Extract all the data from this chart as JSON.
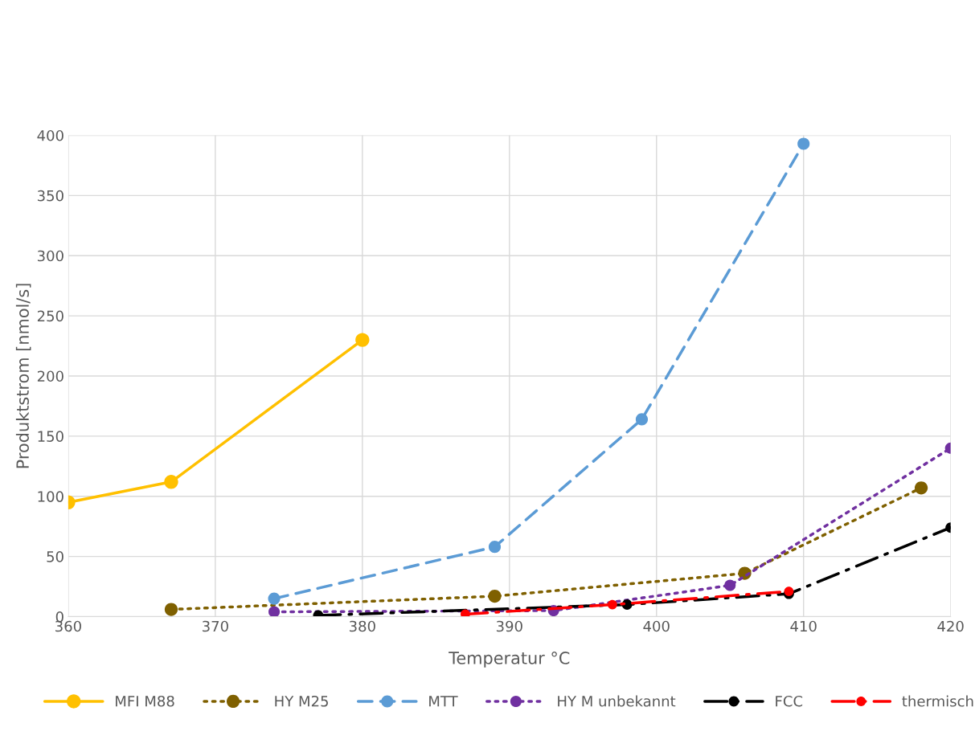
{
  "chart_data": {
    "type": "line",
    "xlabel": "Temperatur °C",
    "ylabel": "Produktstrom [nmol/s]",
    "xlim": [
      360,
      420
    ],
    "xticks": [
      360,
      370,
      380,
      390,
      400,
      410,
      420
    ],
    "ylim": [
      0,
      400
    ],
    "yticks": [
      0,
      50,
      100,
      150,
      200,
      250,
      300,
      350,
      400
    ],
    "grid": true,
    "legend": "bottom",
    "marker": "circle",
    "series": [
      {
        "name": "MFI M88",
        "color": "#ffc000",
        "line_style": "solid",
        "x": [
          360,
          367,
          380
        ],
        "values": [
          95,
          112,
          230
        ]
      },
      {
        "name": "HY M25",
        "color": "#7f6000",
        "line_style": "dotted",
        "x": [
          367,
          389,
          406,
          418
        ],
        "values": [
          6,
          17,
          36,
          107
        ]
      },
      {
        "name": "MTT",
        "color": "#5b9bd5",
        "line_style": "dashed",
        "x": [
          374,
          389,
          399,
          410
        ],
        "values": [
          15,
          58,
          164,
          393
        ]
      },
      {
        "name": "HY M unbekannt",
        "color": "#7030a0",
        "line_style": "dotted",
        "x": [
          374,
          393,
          405,
          420
        ],
        "values": [
          4,
          5,
          26,
          140
        ]
      },
      {
        "name": "FCC",
        "color": "#000000",
        "line_style": "dashdot",
        "x": [
          377,
          398,
          409,
          420
        ],
        "values": [
          1,
          10,
          19,
          74
        ]
      },
      {
        "name": "thermisch",
        "color": "#ff0000",
        "line_style": "dashdot",
        "x": [
          387,
          397,
          409
        ],
        "values": [
          2,
          10,
          21
        ]
      }
    ]
  }
}
